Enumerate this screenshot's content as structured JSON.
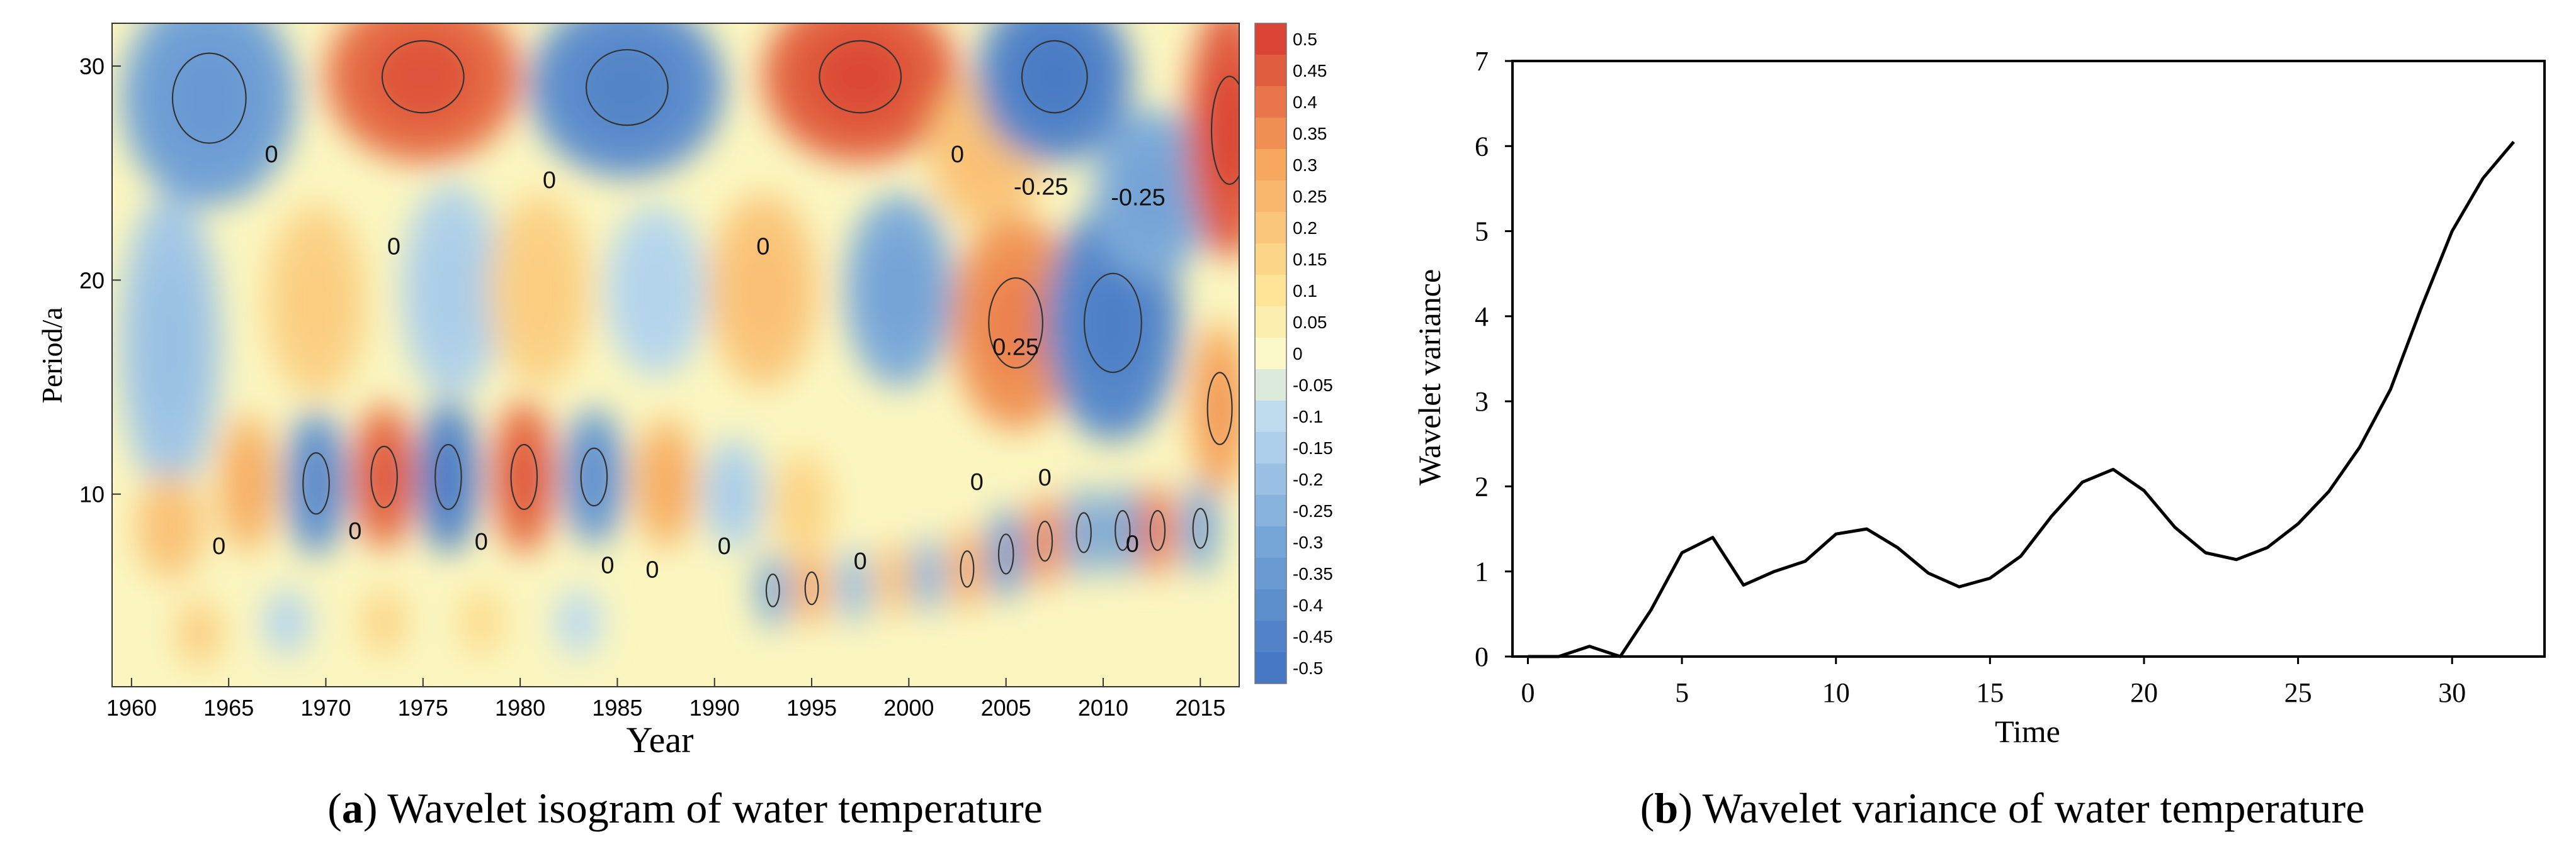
{
  "chart_data": [
    {
      "type": "heatmap",
      "title": "",
      "caption_letter": "a",
      "caption_text": " Wavelet isogram of water temperature",
      "xlabel": "Year",
      "ylabel": "Period/a",
      "x_ticks": [
        1960,
        1965,
        1970,
        1975,
        1980,
        1985,
        1990,
        1995,
        2000,
        2005,
        2010,
        2015
      ],
      "y_ticks": [
        10,
        20,
        30
      ],
      "xlim": [
        1959,
        2017
      ],
      "ylim": [
        1,
        32
      ],
      "colorbar_ticks": [
        "0.5",
        "0.45",
        "0.4",
        "0.35",
        "0.3",
        "0.25",
        "0.2",
        "0.15",
        "0.1",
        "0.05",
        "0",
        "-0.05",
        "-0.1",
        "-0.15",
        "-0.2",
        "-0.25",
        "-0.3",
        "-0.35",
        "-0.4",
        "-0.45",
        "-0.5"
      ],
      "colorbar_range": [
        -0.5,
        0.5
      ],
      "contour_labels": [
        {
          "text": "0",
          "x": 1967.2,
          "y": 25.5
        },
        {
          "text": "0",
          "x": 1973.5,
          "y": 21.2
        },
        {
          "text": "0",
          "x": 1981.5,
          "y": 24.3
        },
        {
          "text": "0",
          "x": 1992.5,
          "y": 21.2
        },
        {
          "text": "0",
          "x": 2002.5,
          "y": 25.5
        },
        {
          "text": "-0.25",
          "x": 2006.8,
          "y": 24.0
        },
        {
          "text": "-0.25",
          "x": 2011.8,
          "y": 23.5
        },
        {
          "text": "0.25",
          "x": 2005.5,
          "y": 16.5
        },
        {
          "text": "0",
          "x": 1964.5,
          "y": 7.2
        },
        {
          "text": "0",
          "x": 1971.5,
          "y": 7.9
        },
        {
          "text": "0",
          "x": 1978.0,
          "y": 7.4
        },
        {
          "text": "0",
          "x": 1984.5,
          "y": 6.3
        },
        {
          "text": "0",
          "x": 1986.8,
          "y": 6.1
        },
        {
          "text": "0",
          "x": 1990.5,
          "y": 7.2
        },
        {
          "text": "0",
          "x": 1997.5,
          "y": 6.5
        },
        {
          "text": "0",
          "x": 2003.5,
          "y": 10.2
        },
        {
          "text": "0",
          "x": 2007.0,
          "y": 10.4
        },
        {
          "text": "0",
          "x": 2011.5,
          "y": 7.3
        }
      ]
    },
    {
      "type": "line",
      "title": "",
      "caption_letter": "b",
      "caption_text": ") Wavelet variance of water temperature",
      "xlabel": "Time",
      "ylabel": "Wavelet variance",
      "x_ticks": [
        0,
        5,
        10,
        15,
        20,
        25,
        30
      ],
      "y_ticks": [
        0,
        1,
        2,
        3,
        4,
        5,
        6,
        7
      ],
      "xlim": [
        -0.5,
        33
      ],
      "ylim": [
        0,
        7
      ],
      "grid": false,
      "x": [
        0,
        1,
        2,
        3,
        4,
        5,
        6,
        7,
        8,
        9,
        10,
        11,
        12,
        13,
        14,
        15,
        16,
        17,
        18,
        19,
        20,
        21,
        22,
        23,
        24,
        25,
        26,
        27,
        28,
        29,
        30,
        31,
        32
      ],
      "y": [
        0.0,
        0.0,
        0.12,
        0.0,
        0.55,
        1.22,
        1.4,
        0.84,
        1.0,
        1.12,
        1.44,
        1.5,
        1.28,
        0.98,
        0.82,
        0.92,
        1.18,
        1.65,
        2.05,
        2.2,
        1.95,
        1.52,
        1.22,
        1.14,
        1.28,
        1.56,
        1.94,
        2.46,
        3.14,
        4.1,
        5.0,
        5.62,
        6.05
      ]
    }
  ]
}
